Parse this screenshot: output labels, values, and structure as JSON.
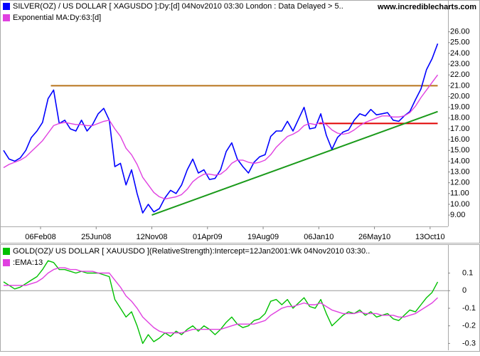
{
  "chart_data": [
    {
      "type": "line",
      "source": "www.incrediblecharts.com",
      "x": [
        "2007-11-05",
        "2007-11-19",
        "2007-12-03",
        "2007-12-17",
        "2007-12-31",
        "2008-01-14",
        "2008-01-28",
        "2008-02-11",
        "2008-02-25",
        "2008-03-10",
        "2008-03-24",
        "2008-04-07",
        "2008-04-21",
        "2008-05-05",
        "2008-05-19",
        "2008-06-02",
        "2008-06-16",
        "2008-06-30",
        "2008-07-14",
        "2008-07-28",
        "2008-08-11",
        "2008-08-25",
        "2008-09-08",
        "2008-09-22",
        "2008-10-06",
        "2008-10-20",
        "2008-11-03",
        "2008-11-17",
        "2008-12-01",
        "2008-12-15",
        "2008-12-29",
        "2009-01-12",
        "2009-01-26",
        "2009-02-09",
        "2009-02-23",
        "2009-03-09",
        "2009-03-23",
        "2009-04-06",
        "2009-04-20",
        "2009-05-04",
        "2009-05-18",
        "2009-06-01",
        "2009-06-15",
        "2009-06-29",
        "2009-07-13",
        "2009-07-27",
        "2009-08-10",
        "2009-08-24",
        "2009-09-07",
        "2009-09-21",
        "2009-10-05",
        "2009-10-19",
        "2009-11-02",
        "2009-11-16",
        "2009-11-30",
        "2009-12-14",
        "2009-12-28",
        "2010-01-11",
        "2010-01-25",
        "2010-02-08",
        "2010-02-22",
        "2010-03-08",
        "2010-03-22",
        "2010-04-05",
        "2010-04-19",
        "2010-05-03",
        "2010-05-17",
        "2010-05-31",
        "2010-06-14",
        "2010-06-28",
        "2010-07-12",
        "2010-07-26",
        "2010-08-09",
        "2010-08-23",
        "2010-09-06",
        "2010-09-20",
        "2010-10-04",
        "2010-10-18",
        "2010-11-01"
      ],
      "series": [
        {
          "name": "SILVER(OZ) / US DOLLAR [ XAGUSDO ]:Dy:[d]  04Nov2010 03:30 London : Data Delayed > 5..",
          "color": "#0000ff",
          "values": [
            15.0,
            14.2,
            14.0,
            14.3,
            15.0,
            16.2,
            16.8,
            17.6,
            19.8,
            20.6,
            17.5,
            17.8,
            17.0,
            16.8,
            17.8,
            16.8,
            17.4,
            18.4,
            18.9,
            17.8,
            13.5,
            13.8,
            11.8,
            13.2,
            11.0,
            9.2,
            10.0,
            9.3,
            9.6,
            10.6,
            11.3,
            11.0,
            11.8,
            13.2,
            14.2,
            12.9,
            13.2,
            12.3,
            12.4,
            13.2,
            14.9,
            15.7,
            14.2,
            13.5,
            12.9,
            13.9,
            14.4,
            14.6,
            16.3,
            16.8,
            16.8,
            17.7,
            16.8,
            17.9,
            19.0,
            17.0,
            17.1,
            18.4,
            16.4,
            15.1,
            16.2,
            16.7,
            16.9,
            17.8,
            18.4,
            18.2,
            18.8,
            18.3,
            18.4,
            18.5,
            17.8,
            17.7,
            18.2,
            18.6,
            19.7,
            20.7,
            22.5,
            23.5,
            24.9
          ]
        },
        {
          "name": "Exponential MA:Dy:63:[d]",
          "color": "#e040e0",
          "values": [
            13.4,
            13.7,
            13.9,
            14.1,
            14.4,
            14.9,
            15.4,
            15.9,
            16.6,
            17.3,
            17.5,
            17.6,
            17.5,
            17.4,
            17.4,
            17.3,
            17.3,
            17.5,
            17.7,
            17.8,
            17.0,
            16.3,
            15.2,
            14.6,
            13.7,
            12.5,
            11.8,
            11.1,
            10.7,
            10.5,
            10.6,
            10.7,
            10.9,
            11.4,
            12.1,
            12.5,
            12.8,
            12.8,
            12.7,
            12.8,
            13.2,
            13.8,
            14.1,
            14.1,
            13.9,
            13.8,
            13.9,
            14.1,
            14.6,
            15.3,
            15.8,
            16.3,
            16.5,
            16.8,
            17.3,
            17.5,
            17.4,
            17.6,
            17.4,
            16.9,
            16.6,
            16.5,
            16.6,
            16.9,
            17.3,
            17.6,
            17.8,
            18.0,
            18.2,
            18.2,
            18.1,
            18.1,
            18.2,
            18.5,
            19.1,
            19.9,
            20.6,
            21.3,
            22.0
          ]
        }
      ],
      "lines": [
        {
          "color": "#b8731a",
          "x": [
            "2008-03-03",
            "2010-11-01"
          ],
          "y": [
            21.0,
            21.0
          ]
        },
        {
          "color": "#e00000",
          "x": [
            "2010-01-06",
            "2010-11-01"
          ],
          "y": [
            17.5,
            17.5
          ]
        },
        {
          "color": "#1a9a1a",
          "x": [
            "2008-11-12",
            "2010-11-01"
          ],
          "y": [
            9.0,
            18.6
          ]
        }
      ],
      "xlim": [
        "2007-11-05",
        "2010-11-27"
      ],
      "xticks": [
        {
          "value": "2008-02-06",
          "label": "06Feb08"
        },
        {
          "value": "2008-06-25",
          "label": "25Jun08"
        },
        {
          "value": "2008-11-12",
          "label": "12Nov08"
        },
        {
          "value": "2009-04-01",
          "label": "01Apr09"
        },
        {
          "value": "2009-08-19",
          "label": "19Aug09"
        },
        {
          "value": "2010-01-06",
          "label": "06Jan10"
        },
        {
          "value": "2010-05-26",
          "label": "26May10"
        },
        {
          "value": "2010-10-13",
          "label": "13Oct10"
        }
      ],
      "ylim": [
        7.95,
        28.95
      ],
      "yticks": [
        {
          "value": 9,
          "label": "9.00"
        },
        {
          "value": 10,
          "label": "10.00"
        },
        {
          "value": 11,
          "label": "11.00"
        },
        {
          "value": 12,
          "label": "12.00"
        },
        {
          "value": 13,
          "label": "13.00"
        },
        {
          "value": 14,
          "label": "14.00"
        },
        {
          "value": 15,
          "label": "15.00"
        },
        {
          "value": 16,
          "label": "16.00"
        },
        {
          "value": 17,
          "label": "17.00"
        },
        {
          "value": 18,
          "label": "18.00"
        },
        {
          "value": 19,
          "label": "19.00"
        },
        {
          "value": 20,
          "label": "20.00"
        },
        {
          "value": 21,
          "label": "21.00"
        },
        {
          "value": 22,
          "label": "22.00"
        },
        {
          "value": 23,
          "label": "23.00"
        },
        {
          "value": 24,
          "label": "24.00"
        },
        {
          "value": 25,
          "label": "25.00"
        },
        {
          "value": 26,
          "label": "26.00"
        }
      ]
    },
    {
      "type": "line",
      "x": [
        "2007-11-05",
        "2007-11-19",
        "2007-12-03",
        "2007-12-17",
        "2007-12-31",
        "2008-01-14",
        "2008-01-28",
        "2008-02-11",
        "2008-02-25",
        "2008-03-10",
        "2008-03-24",
        "2008-04-07",
        "2008-04-21",
        "2008-05-05",
        "2008-05-19",
        "2008-06-02",
        "2008-06-16",
        "2008-06-30",
        "2008-07-14",
        "2008-07-28",
        "2008-08-11",
        "2008-08-25",
        "2008-09-08",
        "2008-09-22",
        "2008-10-06",
        "2008-10-20",
        "2008-11-03",
        "2008-11-17",
        "2008-12-01",
        "2008-12-15",
        "2008-12-29",
        "2009-01-12",
        "2009-01-26",
        "2009-02-09",
        "2009-02-23",
        "2009-03-09",
        "2009-03-23",
        "2009-04-06",
        "2009-04-20",
        "2009-05-04",
        "2009-05-18",
        "2009-06-01",
        "2009-06-15",
        "2009-06-29",
        "2009-07-13",
        "2009-07-27",
        "2009-08-10",
        "2009-08-24",
        "2009-09-07",
        "2009-09-21",
        "2009-10-05",
        "2009-10-19",
        "2009-11-02",
        "2009-11-16",
        "2009-11-30",
        "2009-12-14",
        "2009-12-28",
        "2010-01-11",
        "2010-01-25",
        "2010-02-08",
        "2010-02-22",
        "2010-03-08",
        "2010-03-22",
        "2010-04-05",
        "2010-04-19",
        "2010-05-03",
        "2010-05-17",
        "2010-05-31",
        "2010-06-14",
        "2010-06-28",
        "2010-07-12",
        "2010-07-26",
        "2010-08-09",
        "2010-08-23",
        "2010-09-06",
        "2010-09-20",
        "2010-10-04",
        "2010-10-18",
        "2010-11-01"
      ],
      "series": [
        {
          "name": "GOLD(OZ)/ US DOLLAR [ XAUUSDO ](RelativeStrength):Intercept=12Jan2001:Wk  04Nov2010 03:30..",
          "color": "#00c000",
          "values": [
            0.05,
            0.03,
            0.01,
            0.02,
            0.04,
            0.06,
            0.08,
            0.12,
            0.17,
            0.16,
            0.12,
            0.12,
            0.11,
            0.1,
            0.11,
            0.1,
            0.1,
            0.1,
            0.09,
            0.08,
            -0.05,
            -0.1,
            -0.15,
            -0.12,
            -0.2,
            -0.3,
            -0.25,
            -0.29,
            -0.27,
            -0.24,
            -0.26,
            -0.23,
            -0.25,
            -0.22,
            -0.2,
            -0.23,
            -0.2,
            -0.22,
            -0.25,
            -0.22,
            -0.18,
            -0.15,
            -0.19,
            -0.21,
            -0.2,
            -0.17,
            -0.16,
            -0.13,
            -0.06,
            -0.05,
            -0.08,
            -0.05,
            -0.1,
            -0.07,
            -0.04,
            -0.09,
            -0.1,
            -0.05,
            -0.13,
            -0.2,
            -0.17,
            -0.14,
            -0.12,
            -0.13,
            -0.11,
            -0.14,
            -0.12,
            -0.15,
            -0.14,
            -0.13,
            -0.16,
            -0.17,
            -0.14,
            -0.11,
            -0.12,
            -0.08,
            -0.04,
            -0.01,
            0.05
          ]
        },
        {
          "name": ":EMA:13",
          "color": "#e040e0",
          "values": [
            0.03,
            0.03,
            0.03,
            0.03,
            0.03,
            0.04,
            0.05,
            0.07,
            0.1,
            0.12,
            0.13,
            0.13,
            0.12,
            0.12,
            0.11,
            0.11,
            0.11,
            0.1,
            0.1,
            0.1,
            0.06,
            0.02,
            -0.03,
            -0.06,
            -0.1,
            -0.15,
            -0.18,
            -0.21,
            -0.23,
            -0.24,
            -0.24,
            -0.24,
            -0.24,
            -0.23,
            -0.22,
            -0.22,
            -0.22,
            -0.22,
            -0.22,
            -0.22,
            -0.21,
            -0.2,
            -0.19,
            -0.19,
            -0.19,
            -0.19,
            -0.18,
            -0.17,
            -0.14,
            -0.12,
            -0.1,
            -0.09,
            -0.09,
            -0.08,
            -0.07,
            -0.08,
            -0.08,
            -0.07,
            -0.09,
            -0.11,
            -0.12,
            -0.13,
            -0.13,
            -0.13,
            -0.12,
            -0.13,
            -0.13,
            -0.13,
            -0.14,
            -0.14,
            -0.14,
            -0.15,
            -0.15,
            -0.14,
            -0.13,
            -0.11,
            -0.09,
            -0.07,
            -0.04
          ]
        }
      ],
      "xlim": [
        "2007-11-05",
        "2010-11-27"
      ],
      "ylim": [
        -0.335,
        0.26
      ],
      "yticks": [
        0.1,
        0,
        -0.1,
        -0.2,
        -0.3
      ],
      "zero_line": true
    }
  ]
}
